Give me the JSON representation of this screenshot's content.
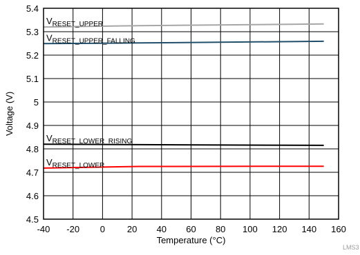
{
  "chart_data": {
    "type": "line",
    "xlabel": "Temperature (°C)",
    "ylabel": "Voltage (V)",
    "xlim": [
      -40,
      160
    ],
    "ylim": [
      4.5,
      5.4
    ],
    "xticks": [
      "-40",
      "-20",
      "0",
      "20",
      "40",
      "60",
      "80",
      "100",
      "120",
      "140",
      "160"
    ],
    "yticks": [
      "4.5",
      "4.6",
      "4.7",
      "4.8",
      "4.9",
      "5",
      "5.1",
      "5.2",
      "5.3",
      "5.4"
    ],
    "grid": true,
    "series": [
      {
        "name_main": "V",
        "name_sub": "RESET_UPPER",
        "color": "#a6a6a6",
        "x": [
          -40,
          25,
          150
        ],
        "y": [
          5.32,
          5.326,
          5.333
        ]
      },
      {
        "name_main": "V",
        "name_sub": "RESET_UPPER_FALLING",
        "color": "#1f4e6b",
        "x": [
          -40,
          25,
          150
        ],
        "y": [
          5.249,
          5.252,
          5.259
        ]
      },
      {
        "name_main": "V",
        "name_sub": "RESET_LOWER_RISING",
        "color": "#000000",
        "x": [
          -40,
          25,
          150
        ],
        "y": [
          4.82,
          4.818,
          4.815
        ]
      },
      {
        "name_main": "V",
        "name_sub": "RESET_LOWER",
        "color": "#ff0000",
        "x": [
          -40,
          25,
          150
        ],
        "y": [
          4.718,
          4.725,
          4.726
        ]
      }
    ]
  },
  "watermark": "LMS3"
}
